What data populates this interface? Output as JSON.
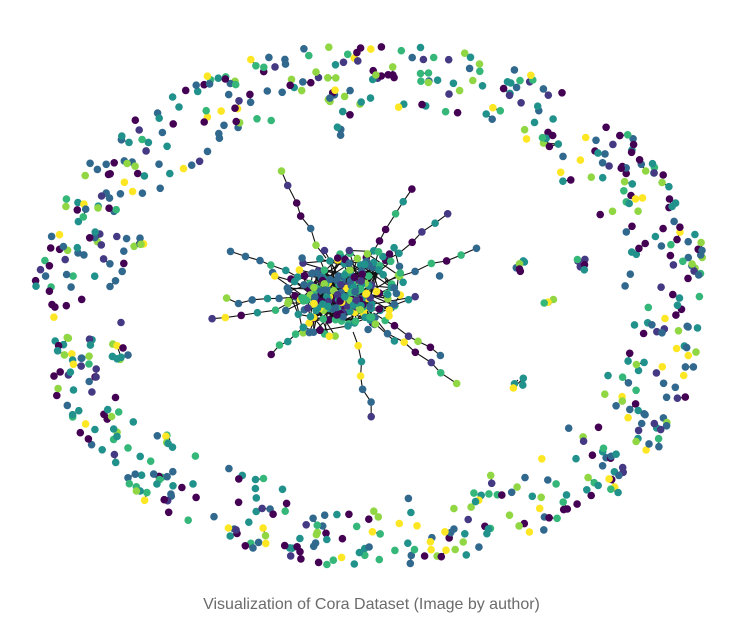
{
  "figure": {
    "caption": "Visualization of Cora Dataset (Image by author)",
    "graph": {
      "type": "network",
      "layout": "spring",
      "class_colors": [
        "#440154",
        "#443983",
        "#31688e",
        "#21918c",
        "#35b779",
        "#90d743",
        "#fde725"
      ],
      "edge_color": "#111111",
      "background": "#ffffff"
    }
  }
}
